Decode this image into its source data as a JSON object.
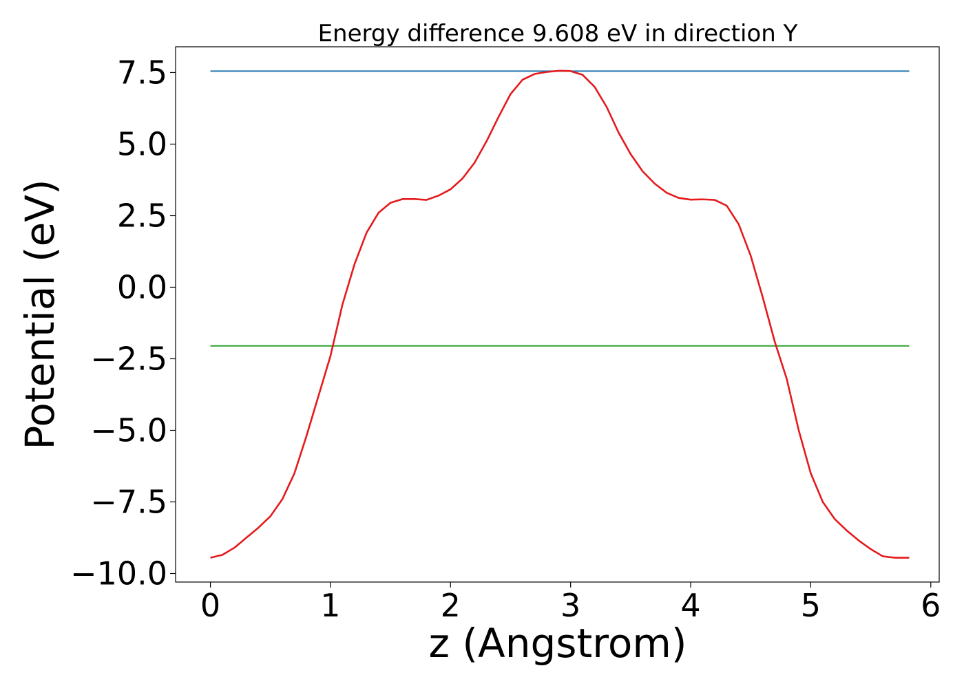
{
  "chart_data": {
    "type": "line",
    "title": "Energy difference 9.608 eV in direction Y",
    "xlabel": "z (Angstrom)",
    "ylabel": "Potential (eV)",
    "xlim": [
      -0.29,
      6.07
    ],
    "ylim": [
      -10.3,
      8.4
    ],
    "xticks": [
      0,
      1,
      2,
      3,
      4,
      5,
      6
    ],
    "xtick_labels": [
      "0",
      "1",
      "2",
      "3",
      "4",
      "5",
      "6"
    ],
    "yticks": [
      7.5,
      5.0,
      2.5,
      0.0,
      -2.5,
      -5.0,
      -7.5,
      -10.0
    ],
    "ytick_labels": [
      "7.5",
      "5.0",
      "2.5",
      "0.0",
      "−2.5",
      "−5.0",
      "−7.5",
      "−10.0"
    ],
    "grid": false,
    "legend": "none",
    "colors": {
      "potential": "#e41a1c",
      "max_level": "#1f77b4",
      "mean_level": "#2ca02c"
    },
    "series": [
      {
        "x": [
          0,
          0.1,
          0.2,
          0.3,
          0.4,
          0.5,
          0.6,
          0.7,
          0.8,
          0.9,
          1.0,
          1.1,
          1.2,
          1.3,
          1.4,
          1.5,
          1.6,
          1.7,
          1.8,
          1.9,
          2.0,
          2.1,
          2.2,
          2.3,
          2.4,
          2.5,
          2.6,
          2.7,
          2.8,
          2.9,
          2.95,
          3.0,
          3.1,
          3.2,
          3.3,
          3.4,
          3.5,
          3.6,
          3.7,
          3.8,
          3.9,
          4.0,
          4.1,
          4.2,
          4.3,
          4.4,
          4.5,
          4.6,
          4.7,
          4.8,
          4.9,
          5.0,
          5.1,
          5.2,
          5.3,
          5.4,
          5.5,
          5.6,
          5.7,
          5.82
        ],
        "values": [
          -9.45,
          -9.35,
          -9.1,
          -8.75,
          -8.4,
          -8.0,
          -7.4,
          -6.5,
          -5.2,
          -3.8,
          -2.4,
          -0.6,
          0.8,
          1.9,
          2.6,
          2.95,
          3.08,
          3.08,
          3.05,
          3.2,
          3.42,
          3.8,
          4.35,
          5.1,
          5.95,
          6.75,
          7.25,
          7.45,
          7.52,
          7.56,
          7.56,
          7.55,
          7.42,
          7.0,
          6.3,
          5.4,
          4.65,
          4.05,
          3.62,
          3.3,
          3.12,
          3.06,
          3.07,
          3.05,
          2.85,
          2.2,
          1.1,
          -0.35,
          -1.9,
          -3.2,
          -5.0,
          -6.5,
          -7.5,
          -8.1,
          -8.5,
          -8.85,
          -9.15,
          -9.4,
          -9.45,
          -9.45
        ]
      },
      {
        "x": [
          0,
          5.82
        ],
        "values": [
          7.55,
          7.55
        ]
      },
      {
        "x": [
          0,
          5.82
        ],
        "values": [
          -2.05,
          -2.05
        ]
      }
    ]
  }
}
